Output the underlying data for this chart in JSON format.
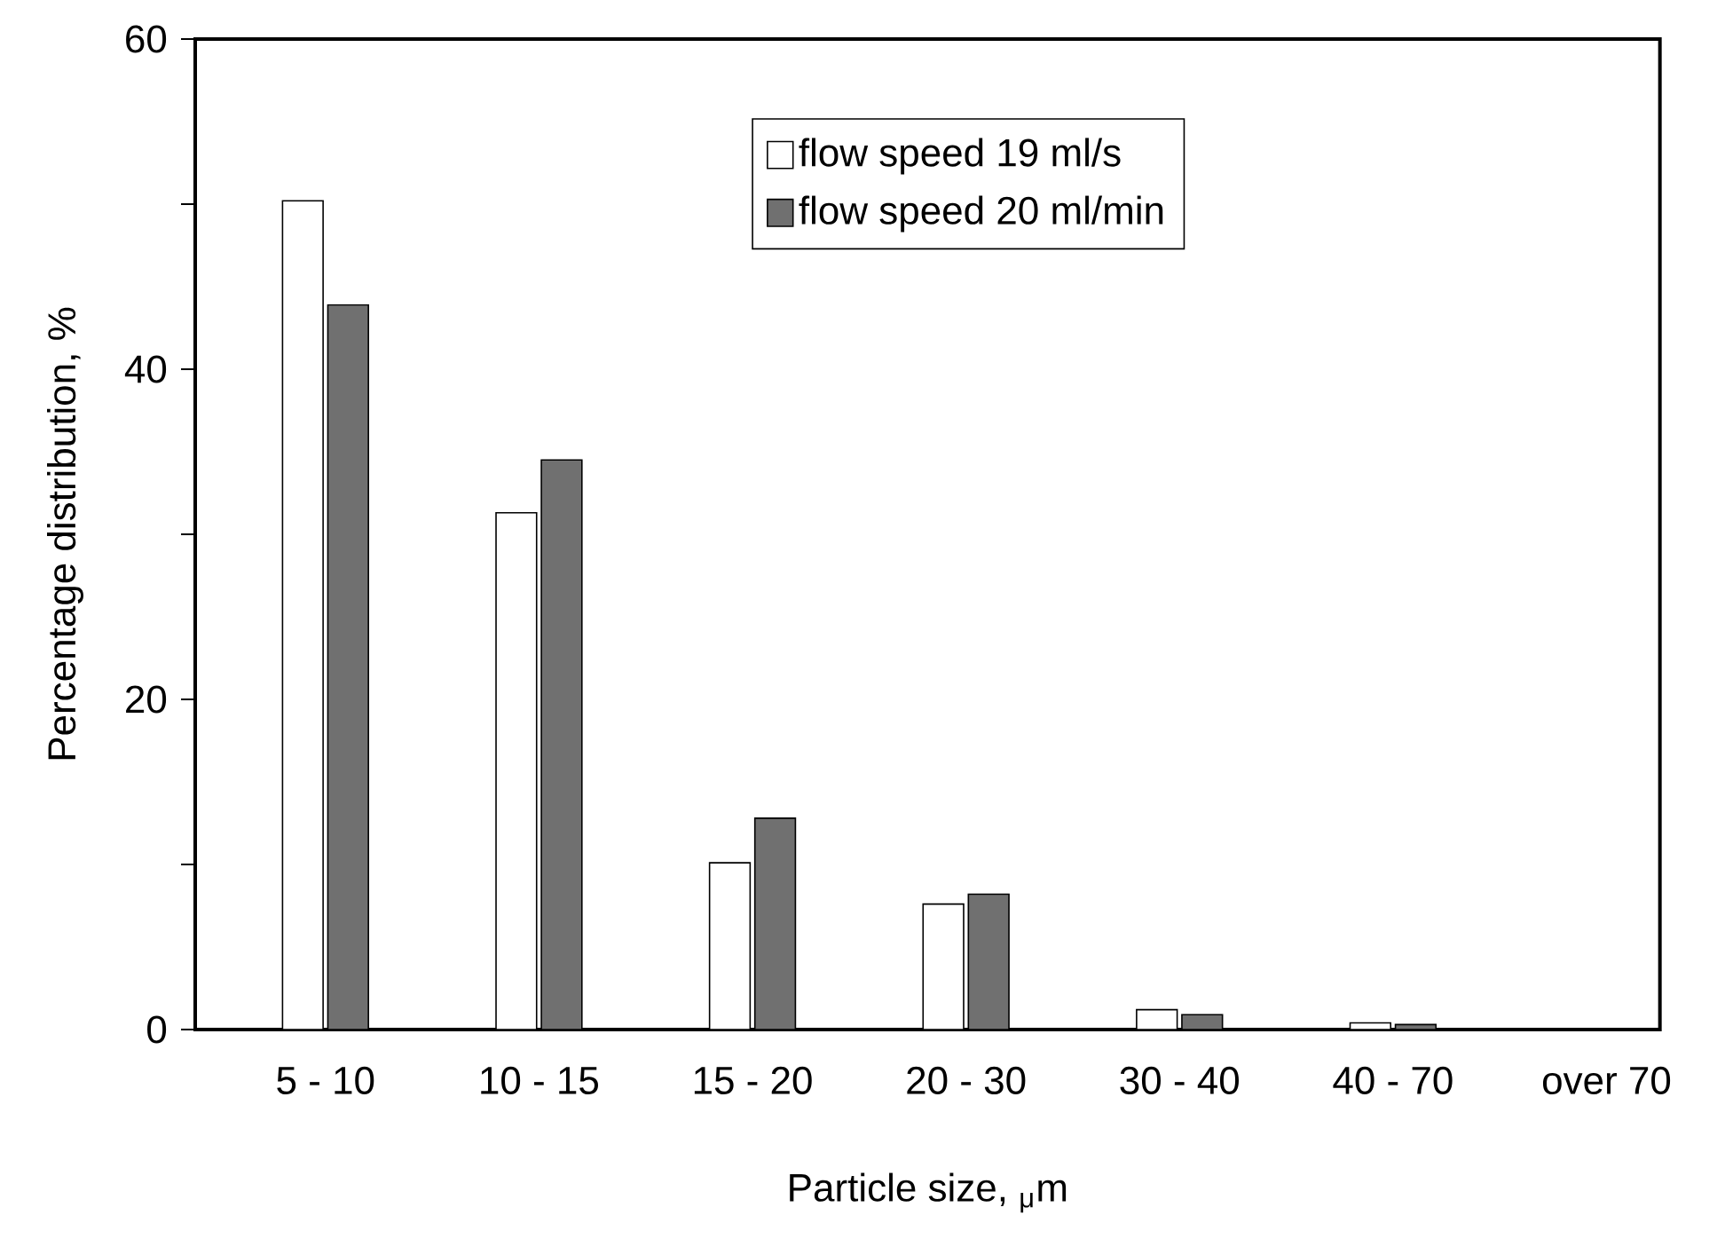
{
  "chart_data": {
    "type": "bar",
    "categories": [
      "5 - 10",
      "10 - 15",
      "15 - 20",
      "20 - 30",
      "30 - 40",
      "40 - 70",
      "over 70"
    ],
    "series": [
      {
        "name": "flow speed 19 ml/s",
        "color": "#ffffff",
        "values": [
          50.2,
          31.3,
          10.1,
          7.6,
          1.2,
          0.4,
          null
        ]
      },
      {
        "name": "flow speed 20 ml/min",
        "color": "#707070",
        "values": [
          43.9,
          34.5,
          12.8,
          8.2,
          0.9,
          0.3,
          null
        ]
      }
    ],
    "xlabel": "Particle size, $_{μ}$m",
    "ylabel": "Percentage distribution, %",
    "ylim": [
      0,
      60
    ],
    "yticks": [
      0,
      {
        "value": 10,
        "label": null
      },
      20,
      {
        "value": 30,
        "label": null
      },
      40,
      {
        "value": 50,
        "label": null
      },
      60
    ],
    "legend": "top",
    "grid": false
  }
}
